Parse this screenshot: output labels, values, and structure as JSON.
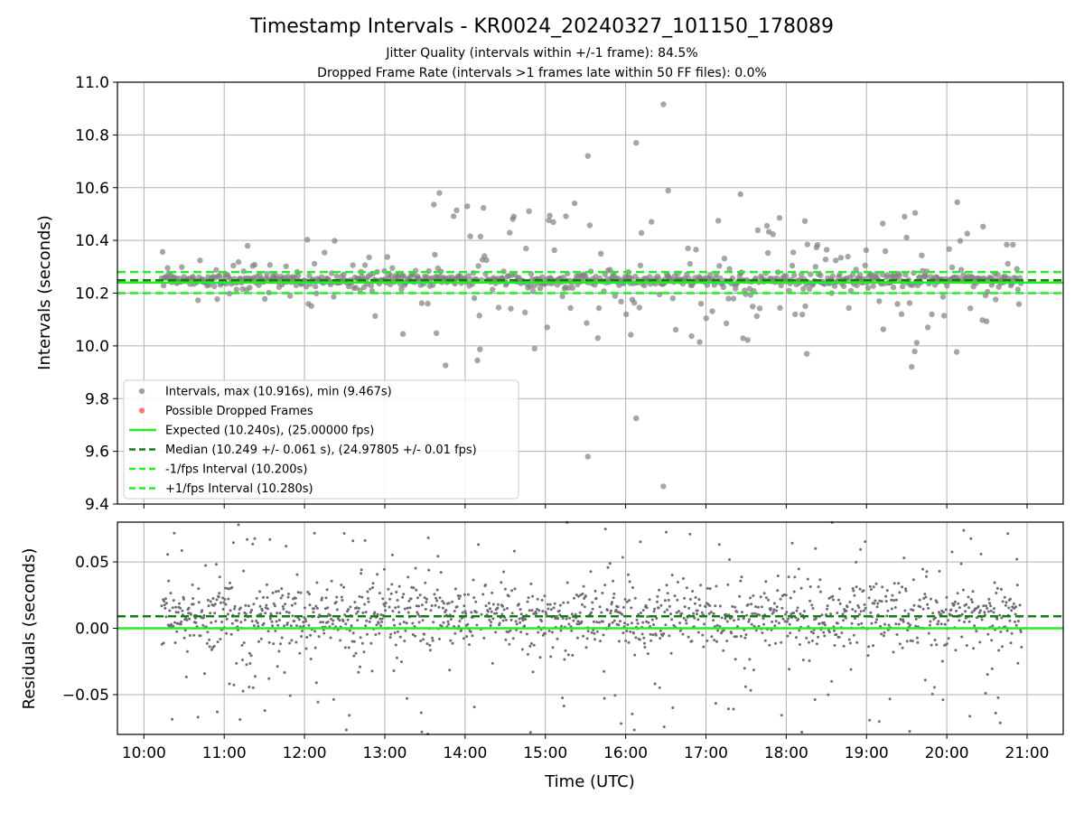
{
  "chart_data": [
    {
      "type": "scatter",
      "title": "Timestamp Intervals - KR0024_20240327_101150_178089",
      "subtitle_lines": [
        "Jitter Quality (intervals within +/-1 frame): 84.5%",
        "Dropped Frame Rate (intervals >1 frames late within 50 FF files): 0.0%"
      ],
      "ylabel": "Intervals (seconds)",
      "ylim": [
        9.4,
        11.0
      ],
      "yticks": [
        "9.4",
        "9.6",
        "9.8",
        "10.0",
        "10.2",
        "10.4",
        "10.6",
        "10.8",
        "11.0"
      ],
      "xlim_hours": [
        9.67,
        21.45
      ],
      "grid": true,
      "legend_position": "lower-left",
      "colors": {
        "intervals": "#808080",
        "dropped": "#f05050",
        "expected": "#22ee22",
        "median": "#1a7a1a",
        "bounds": "#22ee22"
      },
      "reference_lines": {
        "expected": 10.24,
        "median": 10.249,
        "lower": 10.2,
        "upper": 10.28
      },
      "time_range_hours": [
        10.22,
        20.93
      ],
      "notable_points": [
        {
          "x": 16.47,
          "y": 10.916
        },
        {
          "x": 16.13,
          "y": 10.77
        },
        {
          "x": 15.53,
          "y": 10.72
        },
        {
          "x": 13.68,
          "y": 10.58
        },
        {
          "x": 17.43,
          "y": 10.575
        },
        {
          "x": 20.13,
          "y": 10.545
        },
        {
          "x": 16.13,
          "y": 9.725
        },
        {
          "x": 15.53,
          "y": 9.58
        },
        {
          "x": 16.47,
          "y": 9.467
        }
      ],
      "legend": [
        {
          "label": "Intervals, max (10.916s), min (9.467s)",
          "kind": "marker",
          "color": "#808080"
        },
        {
          "label": "Possible Dropped Frames",
          "kind": "marker",
          "color": "#f05050"
        },
        {
          "label": "Expected (10.240s), (25.00000 fps)",
          "kind": "solid",
          "color": "#22ee22"
        },
        {
          "label": "Median (10.249 +/- 0.061 s), (24.97805 +/- 0.01 fps)",
          "kind": "dashed",
          "color": "#1a7a1a"
        },
        {
          "label": "-1/fps Interval (10.200s)",
          "kind": "dashed",
          "color": "#22ee22"
        },
        {
          "label": "+1/fps Interval (10.280s)",
          "kind": "dashed",
          "color": "#22ee22"
        }
      ]
    },
    {
      "type": "scatter",
      "xlabel": "Time (UTC)",
      "ylabel": "Residuals (seconds)",
      "ylim": [
        -0.08,
        0.08
      ],
      "yticks": [
        "−0.05",
        "0.00",
        "0.05"
      ],
      "ytick_values": [
        -0.05,
        0.0,
        0.05
      ],
      "xticks": [
        "10:00",
        "11:00",
        "12:00",
        "13:00",
        "14:00",
        "15:00",
        "16:00",
        "17:00",
        "18:00",
        "19:00",
        "20:00",
        "21:00"
      ],
      "xtick_values": [
        10,
        11,
        12,
        13,
        14,
        15,
        16,
        17,
        18,
        19,
        20,
        21
      ],
      "reference_lines": {
        "zero": 0.0,
        "median": 0.009
      },
      "grid": true
    }
  ]
}
